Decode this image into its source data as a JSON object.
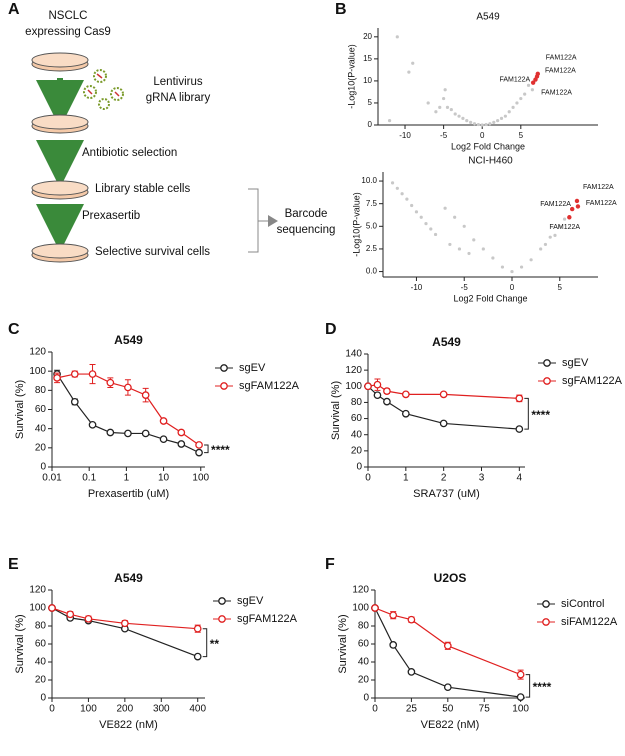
{
  "panel_labels": [
    "A",
    "B",
    "C",
    "D",
    "E",
    "F"
  ],
  "diagram": {
    "start_lines": [
      "NSCLC",
      "expressing Cas9"
    ],
    "virus_lines": [
      "Lentivirus",
      "gRNA library"
    ],
    "step1": "Antibiotic selection",
    "dish3": "Library stable cells",
    "step2": "Prexasertib",
    "dish4": "Selective survival cells",
    "result_lines": [
      "Barcode",
      "sequencing"
    ]
  },
  "chart_data": [
    {
      "type": "scatter",
      "title": "A549",
      "xlabel": "Log2 Fold Change",
      "ylabel": "-Log10(P-value)",
      "xlim": [
        -13.5,
        15
      ],
      "xticks": [
        -10,
        -5,
        0,
        5
      ],
      "ylim": [
        0,
        22
      ],
      "yticks": [
        0,
        5,
        10,
        15,
        20
      ],
      "series": [
        {
          "color": "#c8c8c8",
          "x": [
            -12,
            -11,
            -9,
            -7,
            -6,
            -5,
            -4.5,
            -4,
            -3.5,
            -3,
            -2.5,
            -2,
            -1.5,
            -1,
            -0.5,
            0,
            0.5,
            1,
            1.5,
            2,
            2.5,
            3,
            3.5,
            4,
            4.5,
            5,
            5.5,
            6,
            6.5,
            -9.5,
            -4.8,
            -5.5
          ],
          "y": [
            1,
            20,
            14,
            5,
            3,
            6,
            4,
            3.5,
            2.5,
            2,
            1.5,
            1,
            0.6,
            0.3,
            0.1,
            0,
            0.1,
            0.3,
            0.6,
            1,
            1.5,
            2,
            3,
            4,
            5,
            6,
            7,
            9,
            8,
            12,
            8,
            4
          ]
        },
        {
          "color": "#e03030",
          "x": [
            7.2,
            7.1,
            6.9,
            6.6
          ],
          "y": [
            11.6,
            11,
            10.3,
            9.6
          ],
          "point_labels": [
            "FAM122A",
            "FAM122A",
            "FAM122A",
            "FAM122A"
          ]
        }
      ]
    },
    {
      "type": "scatter",
      "title": "NCI-H460",
      "xlabel": "Log2 Fold Change",
      "ylabel": "-Log10(P-value)",
      "xlim": [
        -13.5,
        9
      ],
      "xticks": [
        -10,
        -5,
        0,
        5
      ],
      "ylim": [
        -0.6,
        11
      ],
      "yticks": [
        {
          "value": 0,
          "label": "0.0"
        },
        {
          "value": 2.5,
          "label": "2.5"
        },
        {
          "value": 5,
          "label": "5.0"
        },
        {
          "value": 7.5,
          "label": "7.5"
        },
        {
          "value": 10,
          "label": "10.0"
        }
      ],
      "series": [
        {
          "color": "#c8c8c8",
          "x": [
            -12.5,
            -12,
            -11.5,
            -11,
            -10.5,
            -10,
            -9.5,
            -9,
            -8.5,
            -8,
            -7,
            -6,
            -5,
            -4,
            -3,
            -2,
            -1,
            0,
            1,
            2,
            3,
            4,
            5,
            5.5,
            -6.5,
            -5.5,
            -4.5,
            3.5,
            4.5
          ],
          "y": [
            9.8,
            9.2,
            8.6,
            8,
            7.3,
            6.6,
            6,
            5.3,
            4.7,
            4.1,
            7,
            6,
            5,
            3.5,
            2.5,
            1.5,
            0.5,
            0,
            0.5,
            1.3,
            2.5,
            3.8,
            5,
            5.8,
            3,
            2.5,
            2,
            3,
            4
          ]
        },
        {
          "color": "#e03030",
          "x": [
            6.8,
            6.3,
            6.9,
            6.0
          ],
          "y": [
            7.8,
            6.9,
            7.2,
            6.0
          ],
          "point_labels": [
            "FAM122A",
            "FAM122A",
            "FAM122A",
            "FAM122A"
          ]
        }
      ]
    },
    {
      "type": "line",
      "title": "A549",
      "xlabel": "Prexasertib (uM)",
      "ylabel": "Survival (%)",
      "xscale": "log",
      "xlim": [
        0.01,
        130
      ],
      "xticks": [
        0.01,
        0.1,
        1,
        10,
        100
      ],
      "ylim": [
        0,
        120
      ],
      "yticks": [
        0,
        20,
        40,
        60,
        80,
        100,
        120
      ],
      "x": [
        0.0137,
        0.041,
        0.123,
        0.37,
        1.1,
        3.3,
        10,
        30,
        90
      ],
      "annotation": "****",
      "series": [
        {
          "name": "sgEV",
          "color": "#222222",
          "values": [
            97,
            68,
            44,
            36,
            35,
            35,
            29,
            24,
            15
          ],
          "errors": [
            4,
            3,
            1,
            1,
            1,
            1,
            1,
            1,
            1
          ]
        },
        {
          "name": "sgFAM122A",
          "color": "#e02020",
          "values": [
            93,
            97,
            97,
            88,
            83,
            75,
            48,
            36,
            23
          ],
          "errors": [
            5,
            3,
            10,
            5,
            8,
            7,
            2,
            2,
            2
          ]
        }
      ]
    },
    {
      "type": "line",
      "title": "A549",
      "xlabel": "SRA737 (uM)",
      "ylabel": "Survival (%)",
      "xlim": [
        0,
        4.15
      ],
      "xticks": [
        0,
        1,
        2,
        3,
        4
      ],
      "ylim": [
        0,
        140
      ],
      "yticks": [
        0,
        20,
        40,
        60,
        80,
        100,
        120,
        140
      ],
      "x": [
        0,
        0.25,
        0.5,
        1,
        2,
        4
      ],
      "annotation": "****",
      "series": [
        {
          "name": "sgEV",
          "color": "#222222",
          "values": [
            100,
            89,
            81,
            66,
            54,
            47
          ],
          "errors": [
            2,
            2,
            2,
            2,
            2,
            1
          ]
        },
        {
          "name": "sgFAM122A",
          "color": "#e02020",
          "values": [
            100,
            102,
            94,
            90,
            90,
            85
          ],
          "errors": [
            2,
            7,
            3,
            2,
            2,
            4
          ]
        }
      ]
    },
    {
      "type": "line",
      "title": "A549",
      "xlabel": "VE822 (nM)",
      "ylabel": "Survival (%)",
      "xlim": [
        0,
        420
      ],
      "xticks": [
        0,
        100,
        200,
        300,
        400
      ],
      "ylim": [
        0,
        120
      ],
      "yticks": [
        0,
        20,
        40,
        60,
        80,
        100,
        120
      ],
      "x": [
        0,
        50,
        100,
        200,
        400
      ],
      "annotation": "**",
      "series": [
        {
          "name": "sgEV",
          "color": "#222222",
          "values": [
            100,
            89,
            86,
            77,
            46
          ],
          "errors": [
            2,
            2,
            2,
            2,
            1
          ]
        },
        {
          "name": "sgFAM122A",
          "color": "#e02020",
          "values": [
            100,
            93,
            88,
            83,
            77
          ],
          "errors": [
            2,
            3,
            3,
            3,
            4
          ]
        }
      ]
    },
    {
      "type": "line",
      "title": "U2OS",
      "xlabel": "VE822 (nM)",
      "ylabel": "Survival (%)",
      "xlim": [
        0,
        103
      ],
      "xticks": [
        0,
        25,
        50,
        75,
        100
      ],
      "ylim": [
        0,
        120
      ],
      "yticks": [
        0,
        20,
        40,
        60,
        80,
        100,
        120
      ],
      "x": [
        0,
        12.5,
        25,
        50,
        100
      ],
      "annotation": "****",
      "series": [
        {
          "name": "siControl",
          "color": "#222222",
          "values": [
            100,
            59,
            29,
            12,
            1
          ],
          "errors": [
            2,
            2,
            1,
            2,
            1
          ]
        },
        {
          "name": "siFAM122A",
          "color": "#e02020",
          "values": [
            100,
            92,
            87,
            58,
            26
          ],
          "errors": [
            2,
            4,
            3,
            4,
            5
          ]
        }
      ]
    }
  ]
}
